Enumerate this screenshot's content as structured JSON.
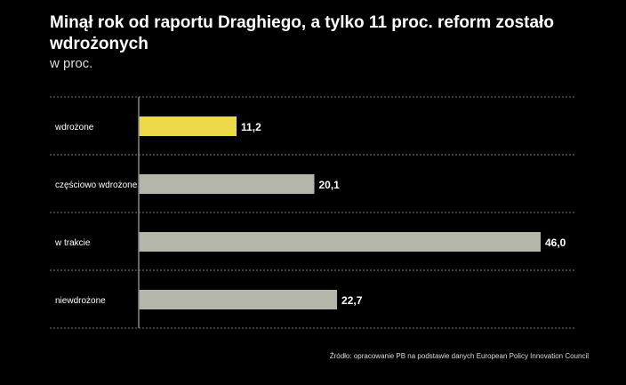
{
  "chart_data": {
    "type": "bar",
    "orientation": "horizontal",
    "title": "Minął rok od raportu Draghiego, a tylko 11 proc. reform zostało wdrożonych",
    "subtitle": "w proc.",
    "categories": [
      "wdrożone",
      "częściowo wdrożone",
      "w trakcie",
      "niewdrożone"
    ],
    "values": [
      11.2,
      20.1,
      46.0,
      22.7
    ],
    "value_labels": [
      "11,2",
      "20,1",
      "46,0",
      "22,7"
    ],
    "colors": [
      "#ecdb47",
      "#b5b5aa",
      "#b5b5aa",
      "#b5b5aa"
    ],
    "xlim": [
      0,
      46
    ],
    "grid": "dashed horizontal separators",
    "source": "Źródło: opracowanie PB na podstawie danych European Policy Innovation Council"
  }
}
